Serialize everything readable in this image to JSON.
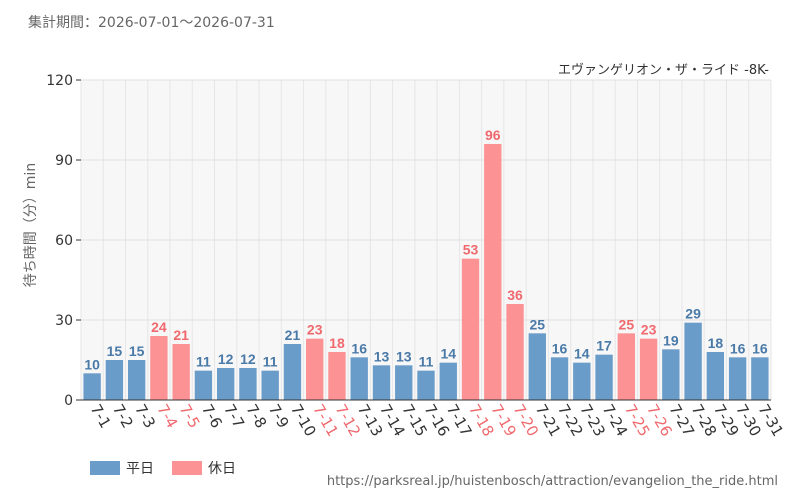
{
  "header": {
    "period": "集計期間：2026-07-01～2026-07-31"
  },
  "footer": {
    "url": "https://parksreal.jp/huistenbosch/attraction/evangelion_the_ride.html"
  },
  "chart_data": {
    "type": "bar",
    "title": "エヴァンゲリオン・ザ・ライド -8K-",
    "ylabel": "待ち時間（分）min",
    "ylim": [
      0,
      120
    ],
    "yticks": [
      0,
      30,
      60,
      90,
      120
    ],
    "grid": true,
    "legend_position": "bottom-left",
    "colors": {
      "weekday": "#6a9cc9",
      "weekday_label": "#4a7aa8",
      "holiday": "#fc9294",
      "holiday_label": "#f0696e"
    },
    "legend": [
      {
        "key": "weekday",
        "label": "平日"
      },
      {
        "key": "holiday",
        "label": "休日"
      }
    ],
    "categories": [
      "7-1",
      "7-2",
      "7-3",
      "7-4",
      "7-5",
      "7-6",
      "7-7",
      "7-8",
      "7-9",
      "7-10",
      "7-11",
      "7-12",
      "7-13",
      "7-14",
      "7-15",
      "7-16",
      "7-17",
      "7-18",
      "7-19",
      "7-20",
      "7-21",
      "7-22",
      "7-23",
      "7-24",
      "7-25",
      "7-26",
      "7-27",
      "7-28",
      "7-29",
      "7-30",
      "7-31"
    ],
    "values": [
      10,
      15,
      15,
      24,
      21,
      11,
      12,
      12,
      11,
      21,
      23,
      18,
      16,
      13,
      13,
      11,
      14,
      53,
      96,
      36,
      25,
      16,
      14,
      17,
      25,
      23,
      19,
      29,
      18,
      16,
      16
    ],
    "day_type": [
      "weekday",
      "weekday",
      "weekday",
      "holiday",
      "holiday",
      "weekday",
      "weekday",
      "weekday",
      "weekday",
      "weekday",
      "holiday",
      "holiday",
      "weekday",
      "weekday",
      "weekday",
      "weekday",
      "weekday",
      "holiday",
      "holiday",
      "holiday",
      "weekday",
      "weekday",
      "weekday",
      "weekday",
      "holiday",
      "holiday",
      "weekday",
      "weekday",
      "weekday",
      "weekday",
      "weekday"
    ]
  }
}
